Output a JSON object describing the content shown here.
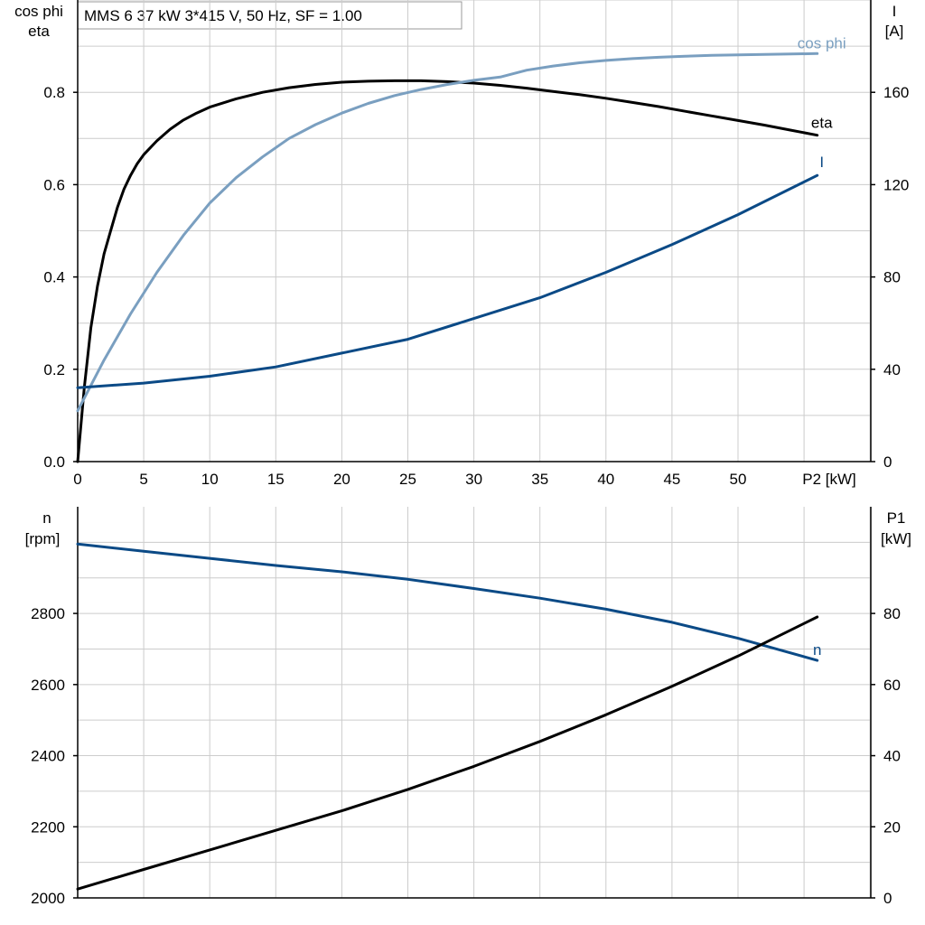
{
  "chart_data": [
    {
      "type": "line",
      "title": "MMS 6   37 kW   3*415 V, 50 Hz, SF = 1.00",
      "xlabel": "P2 [kW]",
      "x_ticks": [
        "0",
        "5",
        "10",
        "15",
        "20",
        "25",
        "30",
        "35",
        "40",
        "45",
        "50"
      ],
      "xlim": [
        0,
        60
      ],
      "ylabel_left": [
        "cos phi",
        "eta"
      ],
      "ylim_left": [
        0,
        1.0
      ],
      "y_ticks_left": [
        "0.0",
        "0.2",
        "0.4",
        "0.6",
        "0.8"
      ],
      "ylabel_right": [
        "I",
        "[A]"
      ],
      "ylim_right": [
        0,
        200
      ],
      "y_ticks_right": [
        "0",
        "40",
        "80",
        "120",
        "160"
      ],
      "grid": true,
      "series": [
        {
          "name": "eta",
          "axis": "left",
          "color": "#000000",
          "x": [
            0,
            0.5,
            1,
            1.5,
            2,
            2.5,
            3,
            3.5,
            4,
            4.5,
            5,
            6,
            7,
            8,
            9,
            10,
            12,
            14,
            16,
            18,
            20,
            22,
            24,
            26,
            28,
            30,
            32,
            34,
            36,
            38,
            40,
            42,
            44,
            46,
            48,
            50,
            52,
            54,
            56
          ],
          "y": [
            0,
            0.16,
            0.29,
            0.38,
            0.45,
            0.5,
            0.55,
            0.59,
            0.62,
            0.645,
            0.665,
            0.695,
            0.72,
            0.74,
            0.755,
            0.768,
            0.786,
            0.8,
            0.81,
            0.817,
            0.822,
            0.824,
            0.825,
            0.825,
            0.823,
            0.82,
            0.815,
            0.809,
            0.802,
            0.795,
            0.787,
            0.778,
            0.769,
            0.759,
            0.749,
            0.739,
            0.729,
            0.718,
            0.707
          ]
        },
        {
          "name": "cos phi",
          "axis": "left",
          "color": "#7a9fc0",
          "x": [
            0,
            2,
            4,
            6,
            8,
            10,
            12,
            14,
            16,
            18,
            20,
            22,
            24,
            26,
            28,
            30,
            32,
            34,
            36,
            38,
            40,
            42,
            44,
            46,
            48,
            50,
            52,
            54,
            56
          ],
          "y": [
            0.11,
            0.22,
            0.32,
            0.41,
            0.49,
            0.56,
            0.615,
            0.66,
            0.7,
            0.73,
            0.755,
            0.776,
            0.793,
            0.806,
            0.817,
            0.826,
            0.833,
            0.848,
            0.857,
            0.864,
            0.869,
            0.873,
            0.876,
            0.878,
            0.88,
            0.881,
            0.882,
            0.883,
            0.884
          ]
        },
        {
          "name": "I",
          "axis": "right",
          "color": "#0b4a86",
          "x": [
            0,
            5,
            10,
            15,
            20,
            25,
            30,
            35,
            40,
            45,
            50,
            56
          ],
          "y": [
            32,
            34,
            37,
            41,
            47,
            53,
            62,
            71,
            82,
            94,
            107,
            124
          ]
        }
      ]
    },
    {
      "type": "line",
      "xlim": [
        0,
        60
      ],
      "ylabel_left": [
        "n",
        "[rpm]"
      ],
      "ylim_left": [
        2000,
        3100
      ],
      "y_ticks_left": [
        "2000",
        "2200",
        "2400",
        "2600",
        "2800"
      ],
      "ylabel_right": [
        "P1",
        "[kW]"
      ],
      "ylim_right": [
        0,
        110
      ],
      "y_ticks_right": [
        "0",
        "20",
        "40",
        "60",
        "80"
      ],
      "grid": true,
      "series": [
        {
          "name": "n",
          "axis": "left",
          "color": "#0b4a86",
          "x": [
            0,
            5,
            10,
            15,
            20,
            25,
            30,
            35,
            40,
            45,
            50,
            56
          ],
          "y": [
            2995,
            2975,
            2955,
            2935,
            2917,
            2896,
            2870,
            2843,
            2812,
            2775,
            2730,
            2668
          ]
        },
        {
          "name": "P1",
          "axis": "right",
          "color": "#000000",
          "x": [
            0,
            5,
            10,
            15,
            20,
            25,
            30,
            35,
            40,
            45,
            50,
            56
          ],
          "y": [
            2.5,
            8,
            13.5,
            19,
            24.5,
            30.5,
            37,
            44,
            51.5,
            59.5,
            68,
            79
          ]
        }
      ]
    }
  ]
}
